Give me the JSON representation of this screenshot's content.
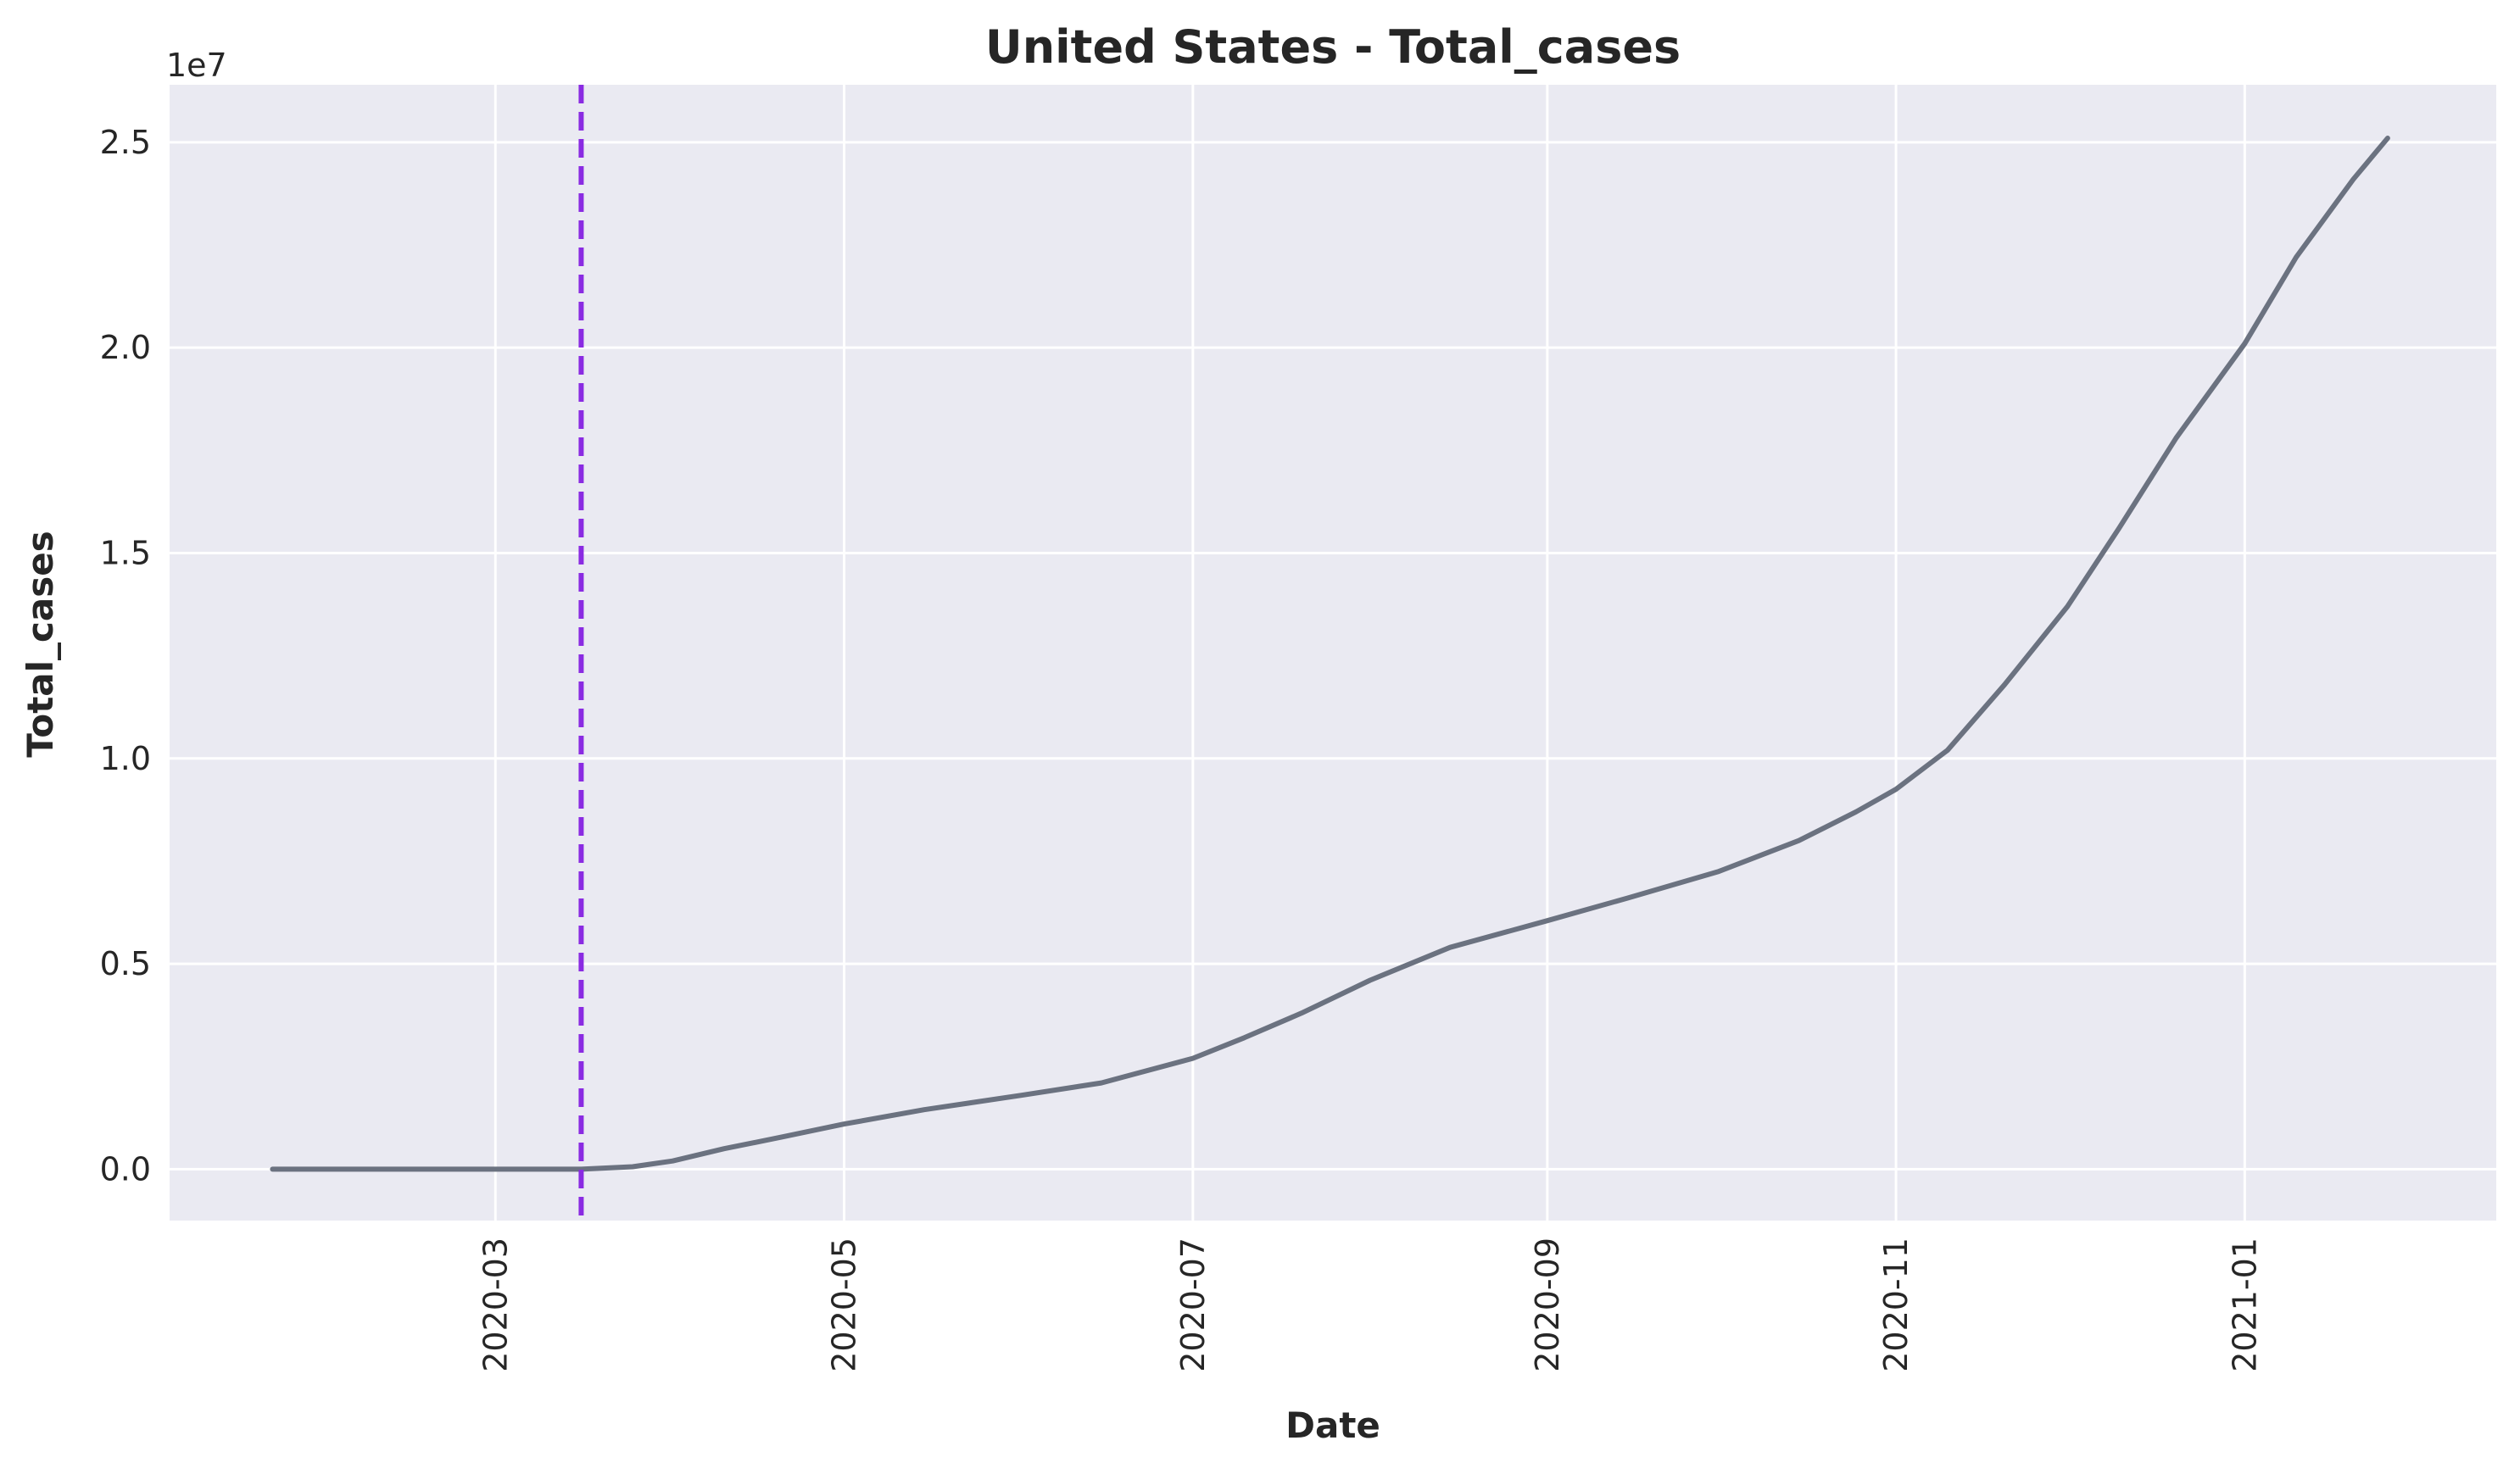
{
  "chart_data": {
    "type": "line",
    "title": "United States - Total_cases",
    "xlabel": "Date",
    "ylabel": "Total_cases",
    "y_offset_label": "1e7",
    "x_tick_labels": [
      "2020-03",
      "2020-05",
      "2020-07",
      "2020-09",
      "2020-11",
      "2021-01"
    ],
    "x_ticks": [
      "2020-03-01",
      "2020-05-01",
      "2020-07-01",
      "2020-09-01",
      "2020-11-01",
      "2021-01-01"
    ],
    "y_tick_labels": [
      "0.0",
      "0.5",
      "1.0",
      "1.5",
      "2.0",
      "2.5"
    ],
    "y_ticks": [
      0,
      5000000,
      10000000,
      15000000,
      20000000,
      25000000
    ],
    "xlim": [
      "2020-01-04",
      "2021-02-14"
    ],
    "ylim": [
      -1250000,
      26400000
    ],
    "grid": true,
    "background": "#eaeaf2",
    "vertical_line": {
      "x": "2020-03-16",
      "color": "#8a2be2",
      "style": "dashed"
    },
    "series": [
      {
        "color": "#6b7280",
        "x": [
          "2020-01-22",
          "2020-02-15",
          "2020-03-01",
          "2020-03-16",
          "2020-03-25",
          "2020-04-01",
          "2020-04-10",
          "2020-04-20",
          "2020-05-01",
          "2020-05-15",
          "2020-06-01",
          "2020-06-15",
          "2020-07-01",
          "2020-07-10",
          "2020-07-20",
          "2020-08-01",
          "2020-08-15",
          "2020-09-01",
          "2020-09-15",
          "2020-10-01",
          "2020-10-15",
          "2020-10-25",
          "2020-11-01",
          "2020-11-10",
          "2020-11-20",
          "2020-12-01",
          "2020-12-10",
          "2020-12-20",
          "2021-01-01",
          "2021-01-10",
          "2021-01-20",
          "2021-01-26"
        ],
        "y": [
          0,
          0,
          0,
          0,
          60000,
          200000,
          500000,
          780000,
          1100000,
          1450000,
          1800000,
          2100000,
          2700000,
          3200000,
          3800000,
          4600000,
          5400000,
          6050000,
          6600000,
          7250000,
          8000000,
          8700000,
          9250000,
          10200000,
          11800000,
          13700000,
          15600000,
          17800000,
          20100000,
          22200000,
          24100000,
          25100000
        ]
      }
    ]
  }
}
